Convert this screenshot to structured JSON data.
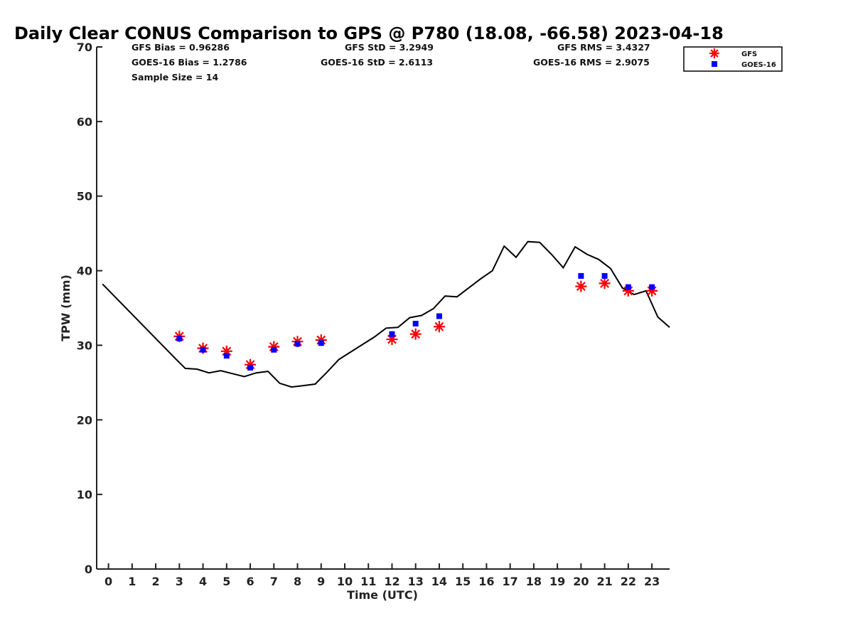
{
  "chart_data": {
    "type": "line",
    "title": "Daily Clear CONUS Comparison to GPS @ P780 (18.08, -66.58) 2023-04-18",
    "xlabel": "Time (UTC)",
    "ylabel": "TPW (mm)",
    "xlim": [
      -0.5,
      23.75
    ],
    "ylim": [
      0,
      70
    ],
    "xticks": [
      0,
      1,
      2,
      3,
      4,
      5,
      6,
      7,
      8,
      9,
      10,
      11,
      12,
      13,
      14,
      15,
      16,
      17,
      18,
      19,
      20,
      21,
      22,
      23
    ],
    "yticks": [
      0,
      10,
      20,
      30,
      40,
      50,
      60,
      70
    ],
    "grid": false,
    "legend_position": "top-right",
    "stats": {
      "gfs_bias": "GFS Bias = 0.96286",
      "goes_bias": "GOES-16 Bias = 1.2786",
      "sample_size": "Sample Size = 14",
      "gfs_std": "GFS StD = 3.2949",
      "goes_std": "GOES-16 StD = 2.6113",
      "gfs_rms": "GFS RMS = 3.4327",
      "goes_rms": "GOES-16 RMS = 2.9075"
    },
    "series": [
      {
        "kind": "line",
        "color": "#000000",
        "points": [
          [
            -0.25,
            38.2
          ],
          [
            2.9,
            28.0
          ],
          [
            3.25,
            26.9
          ],
          [
            3.75,
            26.8
          ],
          [
            4.25,
            26.3
          ],
          [
            4.75,
            26.6
          ],
          [
            5.25,
            26.2
          ],
          [
            5.75,
            25.8
          ],
          [
            6.25,
            26.3
          ],
          [
            6.75,
            26.5
          ],
          [
            7.25,
            24.9
          ],
          [
            7.75,
            24.4
          ],
          [
            8.25,
            24.6
          ],
          [
            8.75,
            24.8
          ],
          [
            9.25,
            26.4
          ],
          [
            9.75,
            28.1
          ],
          [
            10.25,
            29.1
          ],
          [
            10.75,
            30.1
          ],
          [
            11.25,
            31.1
          ],
          [
            11.75,
            32.3
          ],
          [
            12.25,
            32.4
          ],
          [
            12.75,
            33.7
          ],
          [
            13.25,
            34.0
          ],
          [
            13.75,
            34.9
          ],
          [
            14.25,
            36.6
          ],
          [
            14.75,
            36.5
          ],
          [
            15.25,
            37.7
          ],
          [
            15.75,
            38.9
          ],
          [
            16.25,
            40.0
          ],
          [
            16.75,
            43.3
          ],
          [
            17.25,
            41.8
          ],
          [
            17.75,
            43.9
          ],
          [
            18.25,
            43.8
          ],
          [
            18.75,
            42.2
          ],
          [
            19.25,
            40.4
          ],
          [
            19.75,
            43.2
          ],
          [
            20.25,
            42.2
          ],
          [
            20.75,
            41.5
          ],
          [
            21.25,
            40.3
          ],
          [
            21.75,
            37.7
          ],
          [
            22.25,
            36.8
          ],
          [
            22.75,
            37.3
          ],
          [
            23.25,
            33.8
          ],
          [
            23.75,
            32.4
          ]
        ]
      },
      {
        "name": "GFS",
        "kind": "scatter",
        "marker": "asterisk",
        "color": "#ff0000",
        "points": [
          [
            3,
            31.2
          ],
          [
            4,
            29.6
          ],
          [
            5,
            29.2
          ],
          [
            6,
            27.4
          ],
          [
            7,
            29.8
          ],
          [
            8,
            30.5
          ],
          [
            9,
            30.7
          ],
          [
            12,
            30.8
          ],
          [
            13,
            31.5
          ],
          [
            14,
            32.5
          ],
          [
            20,
            37.9
          ],
          [
            21,
            38.3
          ],
          [
            22,
            37.3
          ],
          [
            23,
            37.3
          ]
        ]
      },
      {
        "name": "GOES-16",
        "kind": "scatter",
        "marker": "square",
        "color": "#0000ff",
        "points": [
          [
            3,
            30.9
          ],
          [
            4,
            29.4
          ],
          [
            5,
            28.6
          ],
          [
            6,
            27.0
          ],
          [
            7,
            29.4
          ],
          [
            8,
            30.2
          ],
          [
            9,
            30.3
          ],
          [
            12,
            31.5
          ],
          [
            13,
            32.9
          ],
          [
            14,
            33.9
          ],
          [
            20,
            39.3
          ],
          [
            21,
            39.3
          ],
          [
            22,
            37.8
          ],
          [
            23,
            37.8
          ]
        ]
      }
    ]
  }
}
